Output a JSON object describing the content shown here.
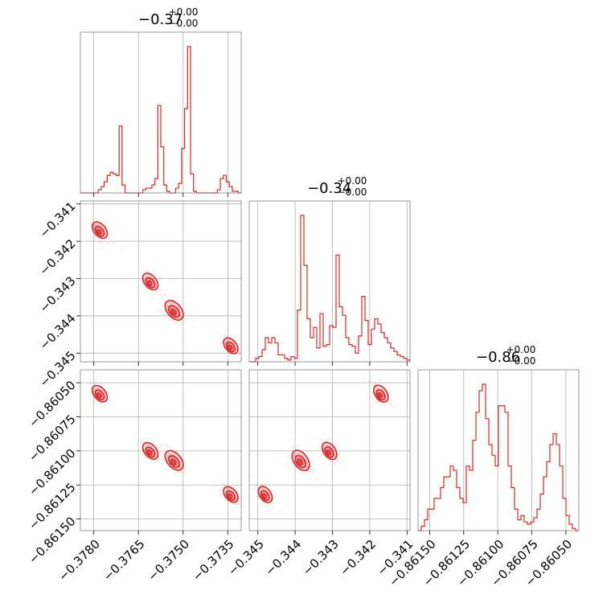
{
  "chart_data": {
    "type": "corner",
    "color": "#d62728",
    "grid": true,
    "title": "",
    "parameters": [
      {
        "title_main": "−0.37",
        "title_sup": "+0.00",
        "title_sub": "−0.00",
        "range": [
          -0.37845,
          -0.37305
        ],
        "ticks": [
          -0.378,
          -0.3765,
          -0.375,
          -0.3735
        ],
        "tick_labels": [
          "−0.3780",
          "−0.3765",
          "−0.3750",
          "−0.3735"
        ]
      },
      {
        "title_main": "−0.34",
        "title_sup": "+0.00",
        "title_sub": "−0.00",
        "range": [
          -0.34523,
          -0.34092
        ],
        "ticks": [
          -0.345,
          -0.344,
          -0.343,
          -0.342,
          -0.341
        ],
        "tick_labels": [
          "−0.345",
          "−0.344",
          "−0.343",
          "−0.342",
          "−0.341"
        ]
      },
      {
        "title_main": "−0.86",
        "title_sup": "+0.00",
        "title_sub": "−0.00",
        "range": [
          -0.861585,
          -0.860405
        ],
        "ticks": [
          -0.8615,
          -0.86125,
          -0.861,
          -0.86075,
          -0.8605
        ],
        "tick_labels": [
          "−0.86150",
          "−0.86125",
          "−0.86100",
          "−0.86075",
          "−0.86050"
        ]
      }
    ],
    "hist1d": [
      [
        0,
        0,
        0,
        0,
        0,
        0,
        0.02,
        0.04,
        0.07,
        0.11,
        0.13,
        0.12,
        0.11,
        0.42,
        0.05,
        0,
        0,
        0,
        0,
        0,
        0,
        0.02,
        0.03,
        0.03,
        0.05,
        0.09,
        0.55,
        0.29,
        0.05,
        0.01,
        0,
        0,
        0.03,
        0.06,
        0.28,
        0.53,
        0.92,
        0.12,
        0.01,
        0,
        0,
        0,
        0,
        0,
        0,
        0,
        0.02,
        0.09,
        0.11,
        0.07,
        0.04,
        0.01,
        0.01,
        0
      ],
      [
        0,
        0,
        0.02,
        0.03,
        0.07,
        0.14,
        0.11,
        0.14,
        0.11,
        0.04,
        0.04,
        0.02,
        0.01,
        0.03,
        0.02,
        0.3,
        0.85,
        0.56,
        0.25,
        0.14,
        0.2,
        0.08,
        0.28,
        0.09,
        0.1,
        0.21,
        0.2,
        0.62,
        0.32,
        0.27,
        0.14,
        0.1,
        0.09,
        0.05,
        0.15,
        0.38,
        0.24,
        0.1,
        0.19,
        0.25,
        0.22,
        0.17,
        0.14,
        0.11,
        0.08,
        0.06,
        0.04,
        0.03,
        0.02,
        0.01
      ],
      [
        0,
        0.02,
        0.05,
        0.1,
        0.1,
        0.15,
        0.15,
        0.2,
        0.25,
        0.25,
        0.3,
        0.28,
        0.2,
        0.15,
        0.13,
        0.3,
        0.28,
        0.42,
        0.55,
        0.65,
        0.68,
        0.52,
        0.4,
        0.35,
        0.3,
        0.58,
        0.58,
        0.55,
        0.3,
        0.2,
        0.1,
        0.05,
        0.07,
        0.04,
        0.03,
        0.04,
        0.06,
        0.1,
        0.17,
        0.25,
        0.32,
        0.4,
        0.45,
        0.4,
        0.3,
        0.15,
        0.07,
        0.03,
        0.01,
        0
      ]
    ],
    "clusters": [
      {
        "a": -0.3778,
        "b": -0.3417,
        "c": -0.86058,
        "w": 0.17
      },
      {
        "a": -0.3761,
        "b": -0.34308,
        "c": -0.861,
        "w": 0.18
      },
      {
        "a": -0.3753,
        "b": -0.34385,
        "c": -0.86107,
        "w": 0.31
      },
      {
        "a": -0.3734,
        "b": -0.3448,
        "c": -0.86132,
        "w": 0.14
      }
    ]
  }
}
